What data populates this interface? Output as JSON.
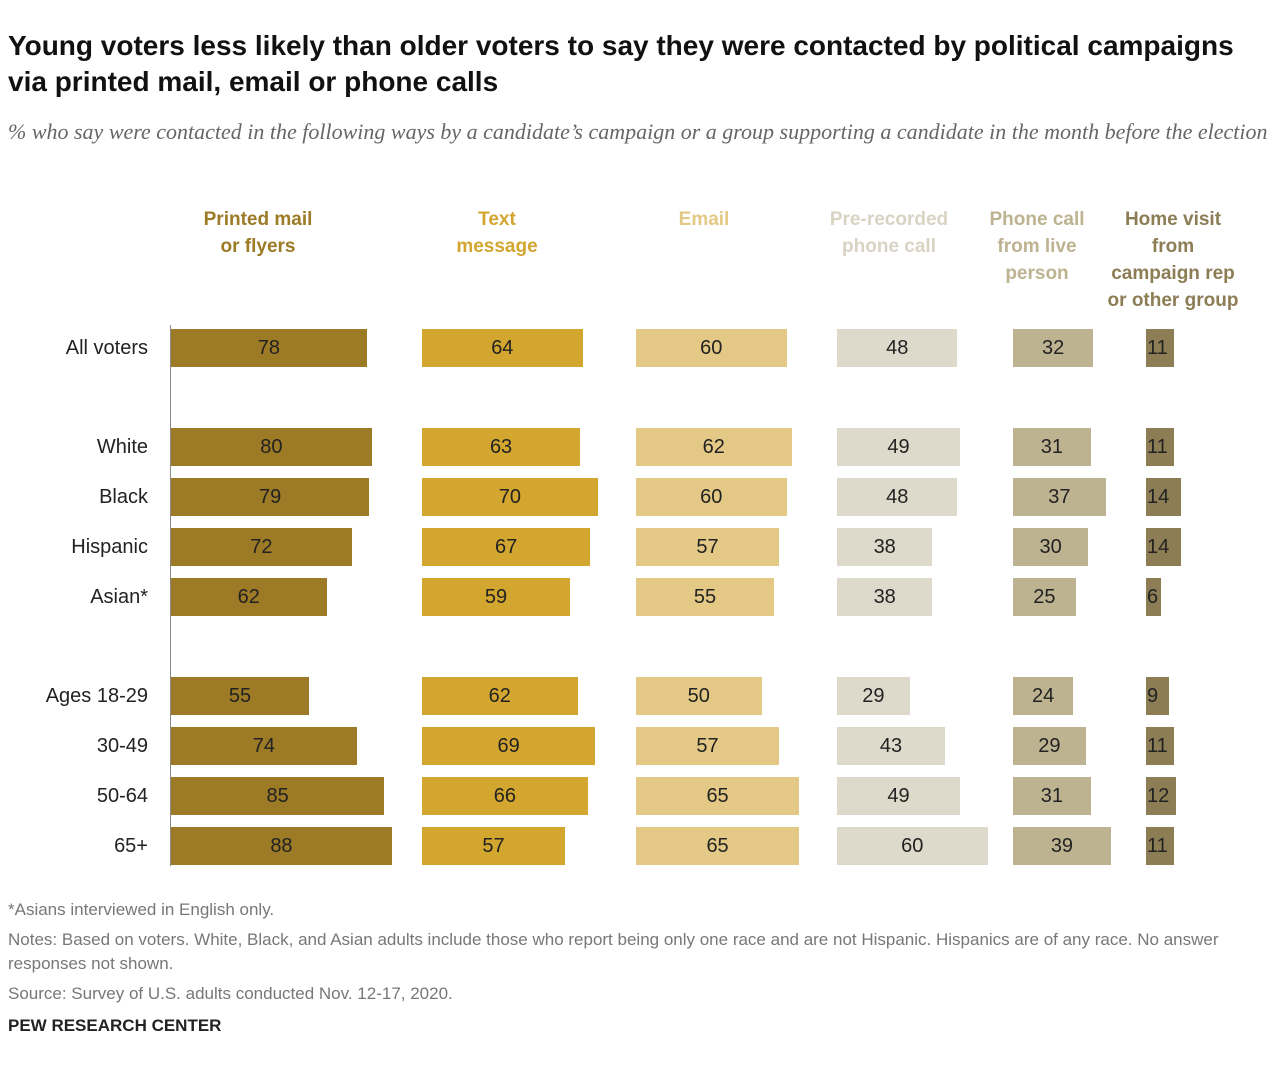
{
  "chart_data": {
    "type": "bar",
    "orientation": "horizontal",
    "title": "Young voters less likely than older voters to say they were contacted by political campaigns via printed mail, email or phone calls",
    "subtitle": "% who say were contacted in the following ways by a candidate’s campaign or a group supporting a candidate in the month before the election",
    "categories": [
      "All voters",
      "White",
      "Black",
      "Hispanic",
      "Asian*",
      "Ages 18-29",
      "30-49",
      "50-64",
      "65+"
    ],
    "series": [
      {
        "name": "Printed mail\nor flyers",
        "color": "#9c7a26",
        "values": [
          78,
          80,
          79,
          72,
          62,
          55,
          74,
          85,
          88
        ]
      },
      {
        "name": "Text\nmessage",
        "color": "#d3a62f",
        "values": [
          64,
          63,
          70,
          67,
          59,
          62,
          69,
          66,
          57
        ]
      },
      {
        "name": "Email",
        "color": "#e3c985",
        "values": [
          60,
          62,
          60,
          57,
          55,
          50,
          57,
          65,
          65
        ]
      },
      {
        "name": "Pre-recorded\nphone call",
        "color": "#dedacb",
        "values": [
          48,
          49,
          48,
          38,
          38,
          29,
          43,
          49,
          60
        ]
      },
      {
        "name": "Phone call\nfrom live\nperson",
        "color": "#bdb391",
        "values": [
          32,
          31,
          37,
          30,
          25,
          24,
          29,
          31,
          39
        ]
      },
      {
        "name": "Home visit\nfrom\ncampaign rep\nor other group",
        "color": "#8c7d55",
        "values": [
          11,
          11,
          14,
          14,
          6,
          9,
          11,
          12,
          11
        ]
      }
    ],
    "notes": [
      "*Asians interviewed in English only.",
      "Notes: Based on voters. White, Black, and Asian adults include those who report being only one race and are not Hispanic. Hispanics are of any race. No answer responses not shown.",
      "Source: Survey of U.S. adults conducted Nov. 12-17, 2020."
    ],
    "credit": "PEW RESEARCH CENTER"
  }
}
